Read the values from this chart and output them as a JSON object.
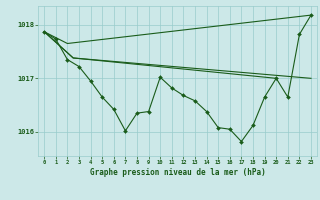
{
  "title": "Graphe pression niveau de la mer (hPa)",
  "bg_color": "#cce8e8",
  "grid_color": "#99cccc",
  "line_color": "#1a5c1a",
  "xlim": [
    -0.5,
    23.5
  ],
  "ylim": [
    1015.55,
    1018.35
  ],
  "yticks": [
    1016,
    1017,
    1018
  ],
  "xticks": [
    0,
    1,
    2,
    3,
    4,
    5,
    6,
    7,
    8,
    9,
    10,
    11,
    12,
    13,
    14,
    15,
    16,
    17,
    18,
    19,
    20,
    21,
    22,
    23
  ],
  "series": {
    "straight1": {
      "x": [
        0,
        2,
        23
      ],
      "y": [
        1017.87,
        1017.65,
        1018.18
      ]
    },
    "straight2": {
      "x": [
        0,
        2.5,
        23
      ],
      "y": [
        1017.87,
        1017.38,
        1017.0
      ]
    },
    "straight3": {
      "x": [
        0,
        2.5,
        20
      ],
      "y": [
        1017.87,
        1017.38,
        1017.0
      ]
    },
    "main": {
      "x": [
        0,
        1,
        2,
        3,
        4,
        5,
        6,
        7,
        8,
        9,
        10,
        11,
        12,
        13,
        14,
        15,
        16,
        17,
        18,
        19,
        20,
        21,
        22,
        23
      ],
      "y": [
        1017.87,
        1017.73,
        1017.35,
        1017.22,
        1016.95,
        1016.65,
        1016.42,
        1016.02,
        1016.35,
        1016.38,
        1017.02,
        1016.82,
        1016.68,
        1016.58,
        1016.38,
        1016.08,
        1016.05,
        1015.82,
        1016.12,
        1016.65,
        1017.0,
        1016.65,
        1017.82,
        1018.18
      ]
    }
  }
}
